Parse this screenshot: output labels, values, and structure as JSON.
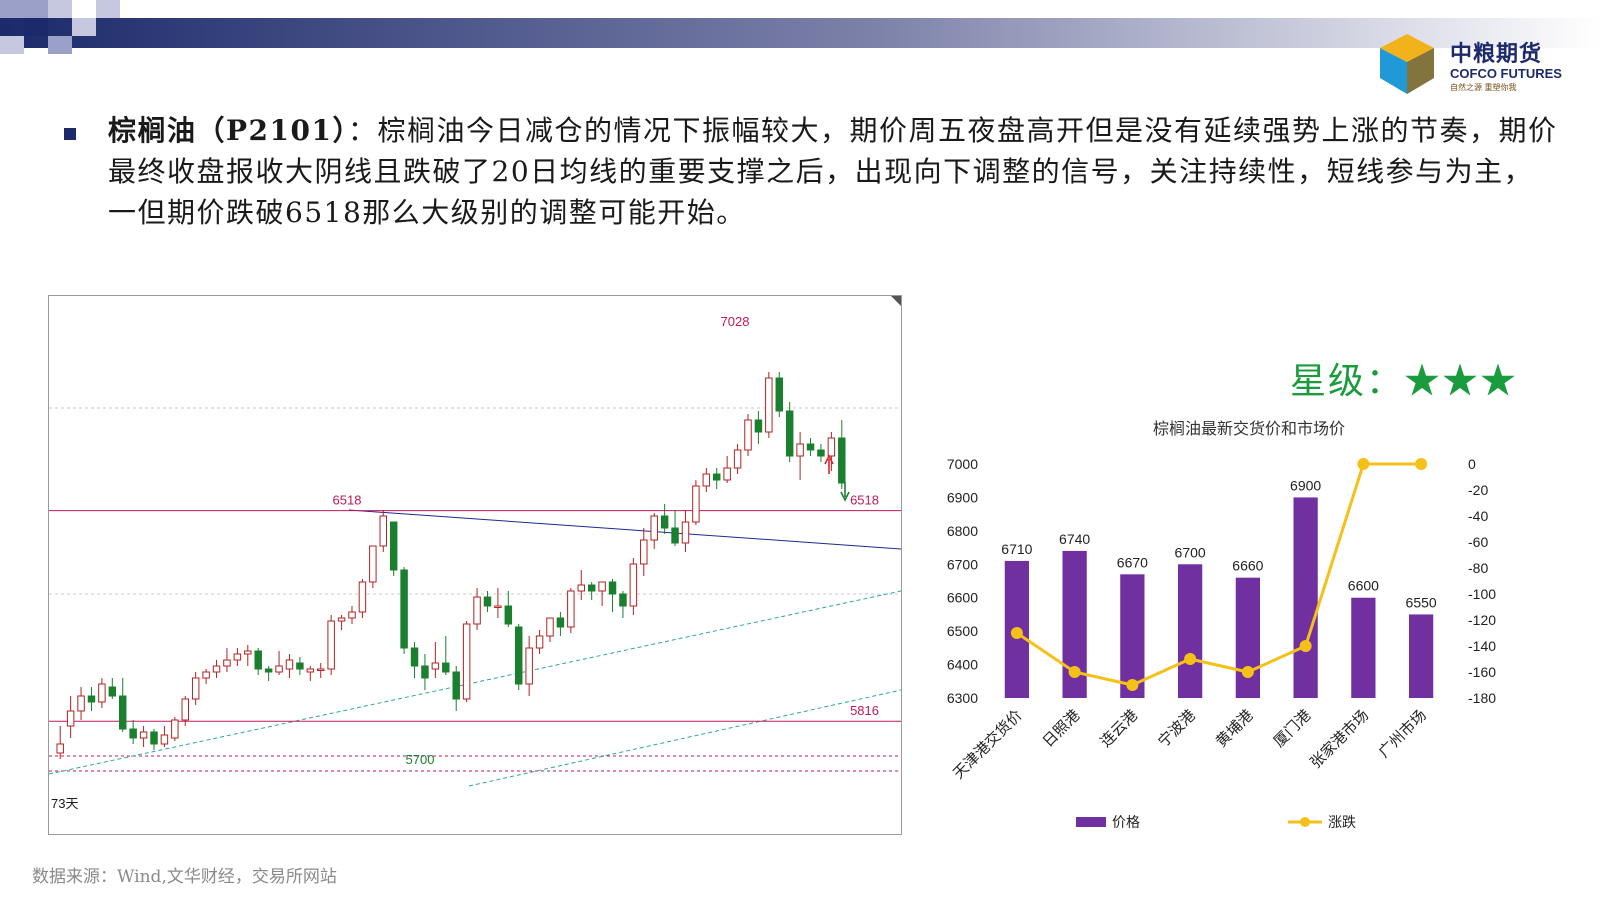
{
  "header": {
    "brand_cn": "中粮期货",
    "brand_en": "COFCO FUTURES",
    "brand_slogan": "自然之源  重塑你我"
  },
  "content": {
    "keyword": "棕榈油（P2101）",
    "text": "：棕榈油今日减仓的情况下振幅较大，期价周五夜盘高开但是没有延续强势上涨的节奏，期价最终收盘报收大阴线且跌破了20日均线的重要支撑之后，出现向下调整的信号，关注持续性，短线参与为主，一但期价跌破6518那么大级别的调整可能开始。"
  },
  "rating": {
    "label": "星级：",
    "stars": "★★★"
  },
  "source": "数据来源：Wind,文华财经，交易所网站",
  "colors": {
    "bar": "#7030a0",
    "line": "#f5c118",
    "up_candle": "#d9252b",
    "down_candle": "#1a7f2e",
    "level_line": "#c2185b",
    "stars": "#1a9c3d",
    "brand": "#1c2a6b"
  },
  "kline": {
    "labels": {
      "high": "7028",
      "resistance_left": "6518",
      "resistance_right": "6518",
      "support_right": "5816",
      "low": "5700",
      "period": "73天"
    },
    "levels": {
      "resistance": 6518,
      "support": 5816
    },
    "candles": [
      [
        5710,
        5740,
        5690,
        5800
      ],
      [
        5800,
        5850,
        5760,
        5900
      ],
      [
        5850,
        5900,
        5820,
        5930
      ],
      [
        5900,
        5880,
        5850,
        5930
      ],
      [
        5880,
        5940,
        5860,
        5960
      ],
      [
        5930,
        5900,
        5890,
        5960
      ],
      [
        5900,
        5790,
        5780,
        5960
      ],
      [
        5790,
        5760,
        5740,
        5820
      ],
      [
        5760,
        5780,
        5730,
        5800
      ],
      [
        5780,
        5740,
        5720,
        5790
      ],
      [
        5740,
        5770,
        5730,
        5800
      ],
      [
        5760,
        5820,
        5750,
        5830
      ],
      [
        5820,
        5890,
        5800,
        5900
      ],
      [
        5890,
        5960,
        5870,
        5980
      ],
      [
        5960,
        5980,
        5940,
        5990
      ],
      [
        5980,
        6000,
        5960,
        6020
      ],
      [
        6000,
        6020,
        5980,
        6060
      ],
      [
        6020,
        6040,
        6000,
        6060
      ],
      [
        6040,
        6050,
        6000,
        6070
      ],
      [
        6050,
        5990,
        5970,
        6060
      ],
      [
        5990,
        5980,
        5950,
        6000
      ],
      [
        5980,
        6000,
        5970,
        6050
      ],
      [
        5990,
        6020,
        5960,
        6040
      ],
      [
        6010,
        5990,
        5970,
        6030
      ],
      [
        5980,
        5990,
        5950,
        6000
      ],
      [
        5990,
        5990,
        5960,
        6010
      ],
      [
        5990,
        6150,
        5970,
        6170
      ],
      [
        6150,
        6160,
        6120,
        6170
      ],
      [
        6160,
        6180,
        6140,
        6200
      ],
      [
        6180,
        6280,
        6160,
        6290
      ],
      [
        6280,
        6400,
        6260,
        6400
      ],
      [
        6400,
        6500,
        6380,
        6520
      ],
      [
        6480,
        6320,
        6300,
        6480
      ],
      [
        6320,
        6060,
        6040,
        6330
      ],
      [
        6060,
        6000,
        5960,
        6080
      ],
      [
        6000,
        5960,
        5920,
        6040
      ],
      [
        5990,
        6010,
        5960,
        6080
      ],
      [
        6010,
        5980,
        5970,
        6100
      ],
      [
        5980,
        5890,
        5850,
        6000
      ],
      [
        5890,
        6140,
        5880,
        6150
      ],
      [
        6140,
        6230,
        6120,
        6260
      ],
      [
        6230,
        6200,
        6180,
        6250
      ],
      [
        6200,
        6200,
        6160,
        6260
      ],
      [
        6200,
        6140,
        6130,
        6250
      ],
      [
        6130,
        5940,
        5920,
        6140
      ],
      [
        5940,
        6060,
        5900,
        6100
      ],
      [
        6060,
        6100,
        6040,
        6120
      ],
      [
        6100,
        6160,
        6080,
        6160
      ],
      [
        6160,
        6130,
        6100,
        6180
      ],
      [
        6130,
        6250,
        6110,
        6260
      ],
      [
        6250,
        6270,
        6220,
        6320
      ],
      [
        6270,
        6250,
        6220,
        6280
      ],
      [
        6250,
        6280,
        6200,
        6280
      ],
      [
        6280,
        6240,
        6180,
        6290
      ],
      [
        6240,
        6200,
        6160,
        6250
      ],
      [
        6200,
        6340,
        6170,
        6360
      ],
      [
        6340,
        6420,
        6300,
        6460
      ],
      [
        6420,
        6500,
        6390,
        6510
      ],
      [
        6500,
        6460,
        6440,
        6540
      ],
      [
        6460,
        6410,
        6400,
        6520
      ],
      [
        6410,
        6480,
        6380,
        6520
      ],
      [
        6480,
        6600,
        6470,
        6620
      ],
      [
        6600,
        6640,
        6580,
        6660
      ],
      [
        6640,
        6620,
        6590,
        6660
      ],
      [
        6620,
        6660,
        6610,
        6700
      ],
      [
        6660,
        6720,
        6640,
        6740
      ],
      [
        6720,
        6820,
        6700,
        6840
      ],
      [
        6820,
        6780,
        6740,
        6850
      ],
      [
        6780,
        6960,
        6760,
        6980
      ],
      [
        6960,
        6850,
        6830,
        6980
      ],
      [
        6850,
        6700,
        6680,
        6880
      ],
      [
        6700,
        6740,
        6620,
        6780
      ],
      [
        6740,
        6720,
        6700,
        6760
      ],
      [
        6720,
        6700,
        6680,
        6740
      ],
      [
        6700,
        6760,
        6650,
        6780
      ],
      [
        6760,
        6610,
        6590,
        6820
      ]
    ]
  },
  "chart_data": {
    "type": "bar",
    "title": "棕榈油最新交货价和市场价",
    "categories": [
      "天津港交货价",
      "日照港",
      "连云港",
      "宁波港",
      "黄埔港",
      "厦门港",
      "张家港市场",
      "广州市场"
    ],
    "series": [
      {
        "name": "价格",
        "type": "bar",
        "axis": "left",
        "values": [
          6710,
          6740,
          6670,
          6700,
          6660,
          6900,
          6600,
          6550
        ]
      },
      {
        "name": "涨跌",
        "type": "line",
        "axis": "right",
        "values": [
          -130,
          -160,
          -170,
          -150,
          -160,
          -140,
          0,
          0
        ]
      }
    ],
    "ylim_left": [
      6300,
      7000
    ],
    "yticks_left": [
      6300,
      6400,
      6500,
      6600,
      6700,
      6800,
      6900,
      7000
    ],
    "ylim_right": [
      -180,
      0
    ],
    "yticks_right": [
      0,
      -20,
      -40,
      -60,
      -80,
      -100,
      -120,
      -140,
      -160,
      -180
    ],
    "data_labels": [
      "6710",
      "6740",
      "6670",
      "6700",
      "6660",
      "6900",
      "6600",
      "6550"
    ],
    "legend": [
      {
        "label": "价格"
      },
      {
        "label": "涨跌"
      }
    ],
    "legend_position": "bottom",
    "grid": false
  }
}
